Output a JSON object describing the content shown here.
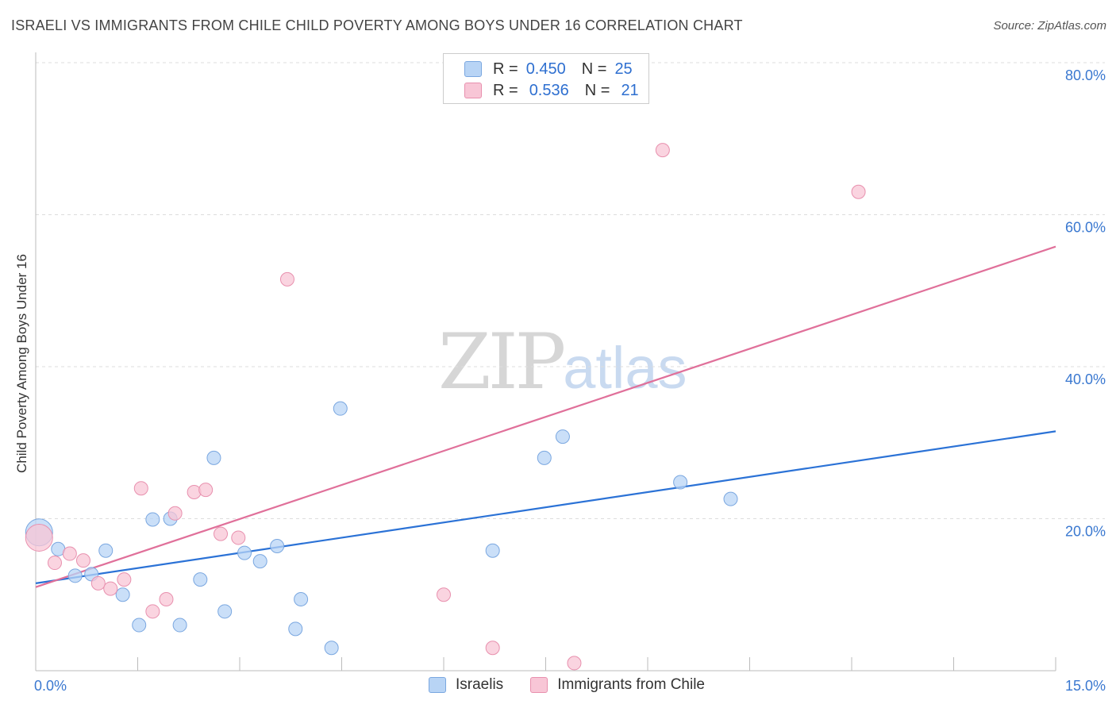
{
  "header": {
    "title": "ISRAELI VS IMMIGRANTS FROM CHILE CHILD POVERTY AMONG BOYS UNDER 16 CORRELATION CHART",
    "source": "Source: ZipAtlas.com"
  },
  "watermark": {
    "zip": "ZIP",
    "atlas": "atlas"
  },
  "legend": {
    "rows": [
      {
        "r_label": "R =",
        "r_value": "0.450",
        "n_label": "N =",
        "n_value": "25"
      },
      {
        "r_label": "R =",
        "r_value": "0.536",
        "n_label": "N =",
        "n_value": "21"
      }
    ]
  },
  "bottom_legend": {
    "israelis": "Israelis",
    "chile": "Immigrants from Chile"
  },
  "colors": {
    "israelis_fill": "#b8d4f5",
    "israelis_stroke": "#7aa7e0",
    "israelis_line": "#2b72d6",
    "chile_fill": "#f8c6d6",
    "chile_stroke": "#e890ae",
    "chile_line": "#e0709a",
    "tick_label": "#3a78d0"
  },
  "chart_data": {
    "type": "scatter",
    "title": "ISRAELI VS IMMIGRANTS FROM CHILE CHILD POVERTY AMONG BOYS UNDER 16 CORRELATION CHART",
    "xlabel": "",
    "ylabel": "Child Poverty Among Boys Under 16",
    "xlim": [
      0,
      15
    ],
    "ylim": [
      0,
      80
    ],
    "x_tick_labels": [
      "0.0%",
      "15.0%"
    ],
    "y_ticks": [
      20,
      40,
      60,
      80
    ],
    "y_tick_labels": [
      "20.0%",
      "40.0%",
      "60.0%",
      "80.0%"
    ],
    "grid": true,
    "series": [
      {
        "name": "Israelis",
        "points": [
          {
            "x": 0.05,
            "y": 18.2,
            "big": true
          },
          {
            "x": 0.33,
            "y": 16.0
          },
          {
            "x": 0.58,
            "y": 12.5
          },
          {
            "x": 0.82,
            "y": 12.7
          },
          {
            "x": 1.03,
            "y": 15.8
          },
          {
            "x": 1.28,
            "y": 10.0
          },
          {
            "x": 1.52,
            "y": 6.0
          },
          {
            "x": 1.72,
            "y": 19.9
          },
          {
            "x": 1.98,
            "y": 20.0
          },
          {
            "x": 2.12,
            "y": 6.0
          },
          {
            "x": 2.42,
            "y": 12.0
          },
          {
            "x": 2.62,
            "y": 28.0
          },
          {
            "x": 2.78,
            "y": 7.8
          },
          {
            "x": 3.07,
            "y": 15.5
          },
          {
            "x": 3.3,
            "y": 14.4
          },
          {
            "x": 3.55,
            "y": 16.4
          },
          {
            "x": 3.82,
            "y": 5.5
          },
          {
            "x": 3.9,
            "y": 9.4
          },
          {
            "x": 4.35,
            "y": 3.0
          },
          {
            "x": 4.48,
            "y": 34.5
          },
          {
            "x": 6.72,
            "y": 15.8
          },
          {
            "x": 7.48,
            "y": 28.0
          },
          {
            "x": 7.75,
            "y": 30.8
          },
          {
            "x": 9.48,
            "y": 24.8
          },
          {
            "x": 10.22,
            "y": 22.6
          }
        ],
        "trend": {
          "x0": 0,
          "y0": 11.5,
          "x1": 15,
          "y1": 31.5
        }
      },
      {
        "name": "Immigrants from Chile",
        "points": [
          {
            "x": 0.05,
            "y": 17.5,
            "big": true
          },
          {
            "x": 0.28,
            "y": 14.2
          },
          {
            "x": 0.5,
            "y": 15.4
          },
          {
            "x": 0.7,
            "y": 14.5
          },
          {
            "x": 0.92,
            "y": 11.5
          },
          {
            "x": 1.1,
            "y": 10.8
          },
          {
            "x": 1.3,
            "y": 12.0
          },
          {
            "x": 1.55,
            "y": 24.0
          },
          {
            "x": 1.72,
            "y": 7.8
          },
          {
            "x": 1.92,
            "y": 9.4
          },
          {
            "x": 2.05,
            "y": 20.7
          },
          {
            "x": 2.33,
            "y": 23.5
          },
          {
            "x": 2.5,
            "y": 23.8
          },
          {
            "x": 2.72,
            "y": 18.0
          },
          {
            "x": 2.98,
            "y": 17.5
          },
          {
            "x": 3.7,
            "y": 51.5
          },
          {
            "x": 6.0,
            "y": 10.0
          },
          {
            "x": 6.72,
            "y": 3.0
          },
          {
            "x": 7.92,
            "y": 1.0
          },
          {
            "x": 9.22,
            "y": 68.5
          },
          {
            "x": 12.1,
            "y": 63.0
          }
        ],
        "trend": {
          "x0": 0,
          "y0": 11.0,
          "x1": 15,
          "y1": 55.8
        }
      }
    ]
  }
}
